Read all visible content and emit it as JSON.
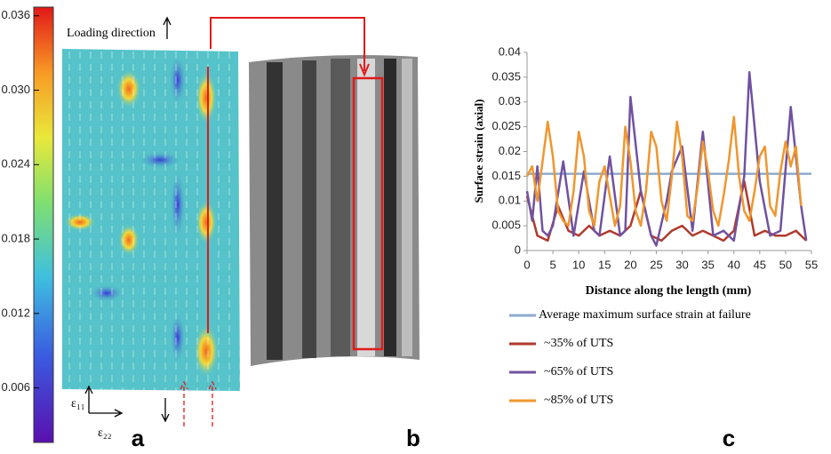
{
  "panel_a": {
    "label": "a",
    "loading_direction": "Loading direction",
    "e11": "ε₁₁",
    "e22": "ε₂₂",
    "colorbar": {
      "lim": [
        0.0016,
        0.0367
      ],
      "ticks": [
        0.036,
        {
          "value": 0.03,
          "label": "0.030"
        },
        {
          "value": 0.024,
          "label": "0.024"
        },
        {
          "value": 0.018,
          "label": "0.018"
        },
        {
          "value": 0.012,
          "label": "0.012"
        },
        {
          "value": 0.006,
          "label": "0.006"
        }
      ]
    }
  },
  "panel_b": {
    "label": "b"
  },
  "panel_c": {
    "label": "c"
  },
  "chart_data": {
    "type": "line",
    "xlabel": "Distance along the length (mm)",
    "ylabel": "Surface strain (axial)",
    "xlim": [
      0,
      55
    ],
    "xticks": [
      0,
      5,
      10,
      15,
      20,
      25,
      30,
      35,
      40,
      45,
      50,
      55
    ],
    "ylim": [
      0,
      0.04
    ],
    "yticks": [
      0,
      0.005,
      0.01,
      0.015,
      0.02,
      0.025,
      0.03,
      0.035,
      0.04
    ],
    "grid": false,
    "legend": "bottom",
    "series": [
      {
        "name": "Average maximum surface strain at failure",
        "color": "#8eaacc",
        "x": [
          0,
          55
        ],
        "values": [
          0.0155,
          0.0155
        ]
      },
      {
        "name": "~35% of UTS",
        "color": "#b03a2e",
        "x": [
          0,
          2,
          4,
          6,
          8,
          10,
          12,
          14,
          16,
          18,
          20,
          22,
          24,
          26,
          28,
          30,
          32,
          34,
          36,
          38,
          40,
          42,
          44,
          46,
          48,
          50,
          52,
          54
        ],
        "values": [
          0.011,
          0.003,
          0.002,
          0.009,
          0.004,
          0.003,
          0.005,
          0.003,
          0.004,
          0.003,
          0.005,
          0.012,
          0.003,
          0.002,
          0.004,
          0.005,
          0.003,
          0.004,
          0.003,
          0.002,
          0.004,
          0.014,
          0.003,
          0.004,
          0.003,
          0.003,
          0.004,
          0.002
        ]
      },
      {
        "name": "~65% of UTS",
        "color": "#7052a0",
        "x": [
          0,
          1,
          2,
          3,
          4,
          5,
          7,
          9,
          11,
          13,
          14,
          16,
          18,
          19,
          20,
          22,
          24,
          25,
          27,
          28,
          30,
          32,
          34,
          36,
          38,
          40,
          42,
          43,
          45,
          47,
          49,
          51,
          53,
          54
        ],
        "values": [
          0.012,
          0.006,
          0.017,
          0.004,
          0.003,
          0.005,
          0.018,
          0.003,
          0.016,
          0.004,
          0.003,
          0.019,
          0.003,
          0.004,
          0.031,
          0.012,
          0.003,
          0.001,
          0.01,
          0.016,
          0.021,
          0.004,
          0.024,
          0.003,
          0.004,
          0.002,
          0.015,
          0.036,
          0.014,
          0.003,
          0.004,
          0.029,
          0.009,
          0.002
        ]
      },
      {
        "name": "~85% of UTS",
        "color": "#f0962e",
        "x": [
          0,
          1,
          2,
          3,
          4,
          5,
          6,
          7,
          8,
          9,
          10,
          11,
          12,
          13,
          14,
          15,
          16,
          17,
          18,
          19,
          20,
          21,
          22,
          23,
          24,
          25,
          26,
          27,
          28,
          29,
          30,
          31,
          32,
          33,
          34,
          35,
          36,
          37,
          38,
          39,
          40,
          41,
          42,
          43,
          44,
          45,
          46,
          47,
          48,
          49,
          50,
          51,
          52,
          53
        ],
        "values": [
          0.015,
          0.017,
          0.01,
          0.018,
          0.026,
          0.019,
          0.008,
          0.006,
          0.005,
          0.012,
          0.024,
          0.019,
          0.008,
          0.005,
          0.014,
          0.017,
          0.011,
          0.005,
          0.009,
          0.025,
          0.018,
          0.008,
          0.005,
          0.012,
          0.024,
          0.021,
          0.01,
          0.006,
          0.015,
          0.026,
          0.019,
          0.007,
          0.006,
          0.013,
          0.022,
          0.016,
          0.008,
          0.005,
          0.011,
          0.018,
          0.027,
          0.015,
          0.008,
          0.006,
          0.012,
          0.019,
          0.021,
          0.009,
          0.007,
          0.016,
          0.022,
          0.017,
          0.021,
          0.009
        ]
      }
    ]
  }
}
